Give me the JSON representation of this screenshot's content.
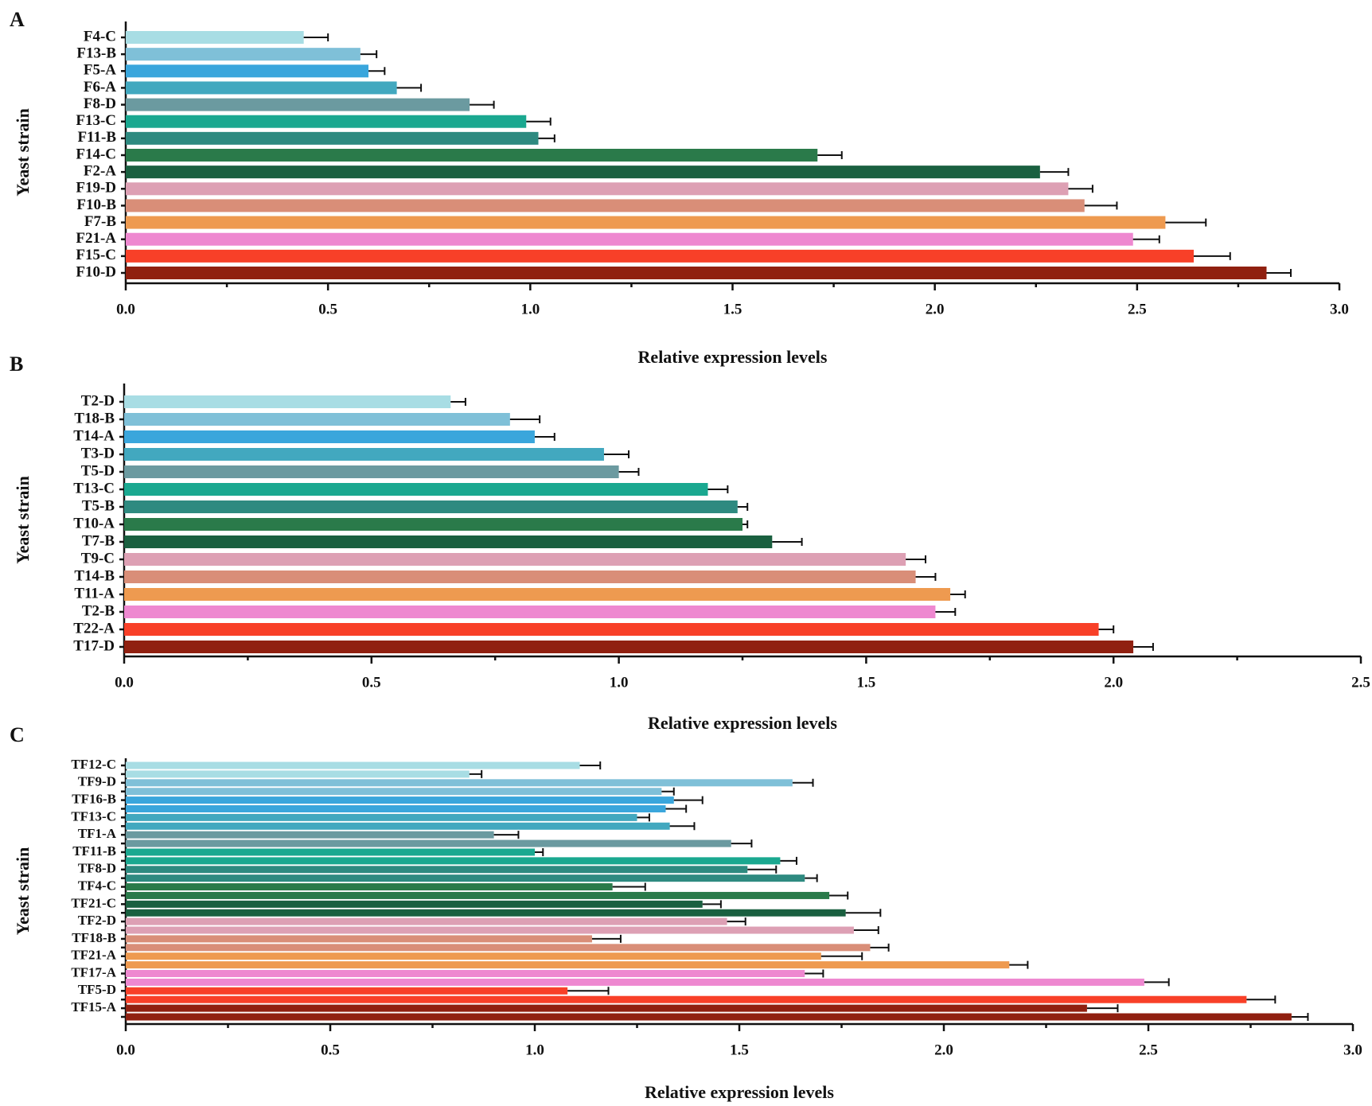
{
  "chart_data": [
    {
      "type": "hbar",
      "panel": "A",
      "ylabel": "Yeast strain",
      "xlabel": "Relative expression levels",
      "categories": [
        "F4-C",
        "F13-B",
        "F5-A",
        "F6-A",
        "F8-D",
        "F13-C",
        "F11-B",
        "F14-C",
        "F2-A",
        "F19-D",
        "F10-B",
        "F7-B",
        "F21-A",
        "F15-C",
        "F10-D"
      ],
      "values": [
        0.44,
        0.58,
        0.6,
        0.67,
        0.85,
        0.99,
        1.02,
        1.71,
        2.26,
        2.33,
        2.37,
        2.57,
        2.49,
        2.64,
        2.82
      ],
      "errors": [
        0.06,
        0.04,
        0.04,
        0.06,
        0.06,
        0.06,
        0.04,
        0.06,
        0.07,
        0.06,
        0.08,
        0.1,
        0.065,
        0.09,
        0.06
      ],
      "colors": [
        "#a8dde4",
        "#7fc0d8",
        "#3aa6dc",
        "#42a8bf",
        "#6b9aa0",
        "#1aa890",
        "#2e8a80",
        "#2a7a4a",
        "#1a6040",
        "#dda0b4",
        "#d98e78",
        "#ee9a50",
        "#ee88d0",
        "#f84028",
        "#902010"
      ],
      "xlim": [
        0,
        3
      ],
      "xticks": [
        {
          "value": 0,
          "label": "0.0"
        },
        0.5,
        {
          "value": 1,
          "label": "1.0"
        },
        1.5,
        {
          "value": 2,
          "label": "2.0"
        },
        2.5,
        {
          "value": 3,
          "label": "3.0"
        }
      ],
      "xminorticks": [
        0.25,
        0.75,
        1.25,
        1.75,
        2.25,
        2.75
      ]
    },
    {
      "type": "hbar",
      "panel": "B",
      "ylabel": "Yeast strain",
      "xlabel": "Relative expression levels",
      "categories": [
        "T2-D",
        "T18-B",
        "T14-A",
        "T3-D",
        "T5-D",
        "T13-C",
        "T5-B",
        "T10-A",
        "T7-B",
        "T9-C",
        "T14-B",
        "T11-A",
        "T2-B",
        "T22-A",
        "T17-D"
      ],
      "values": [
        0.66,
        0.78,
        0.83,
        0.97,
        1.0,
        1.18,
        1.24,
        1.25,
        1.31,
        1.58,
        1.6,
        1.67,
        1.64,
        1.97,
        2.04
      ],
      "errors": [
        0.03,
        0.06,
        0.04,
        0.05,
        0.04,
        0.04,
        0.02,
        0.01,
        0.06,
        0.04,
        0.04,
        0.03,
        0.04,
        0.03,
        0.04
      ],
      "colors": [
        "#a8dde4",
        "#7fc0d8",
        "#3aa6dc",
        "#42a8bf",
        "#6b9aa0",
        "#1aa890",
        "#2e8a80",
        "#2a7a4a",
        "#1a6040",
        "#dda0b4",
        "#d98e78",
        "#ee9a50",
        "#ee88d0",
        "#f84028",
        "#902010"
      ],
      "xlim": [
        0,
        2.5
      ],
      "xticks": [
        {
          "value": 0,
          "label": "0.0"
        },
        0.5,
        {
          "value": 1,
          "label": "1.0"
        },
        1.5,
        {
          "value": 2,
          "label": "2.0"
        },
        2.5
      ],
      "xminorticks": [
        0.25,
        0.75,
        1.25,
        1.75,
        2.25
      ]
    },
    {
      "type": "hbar",
      "panel": "C",
      "ylabel": "Yeast strain",
      "xlabel": "Relative expression levels",
      "categories": [
        "TF12-C",
        null,
        "TF9-D",
        null,
        "TF16-B",
        null,
        "TF13-C",
        null,
        "TF1-A",
        null,
        "TF11-B",
        null,
        "TF8-D",
        null,
        "TF4-C",
        null,
        "TF21-C",
        null,
        "TF2-D",
        null,
        "TF18-B",
        null,
        "TF21-A",
        null,
        "TF17-A",
        null,
        "TF5-D",
        null,
        "TF15-A",
        null
      ],
      "values": [
        1.11,
        0.84,
        1.63,
        1.31,
        1.34,
        1.32,
        1.25,
        1.33,
        0.9,
        1.48,
        1.0,
        1.6,
        1.52,
        1.66,
        1.19,
        1.72,
        1.41,
        1.76,
        1.47,
        1.78,
        1.14,
        1.82,
        1.7,
        2.16,
        1.66,
        2.49,
        1.08,
        2.74,
        2.35,
        2.85
      ],
      "errors": [
        0.05,
        0.03,
        0.05,
        0.03,
        0.07,
        0.05,
        0.03,
        0.06,
        0.06,
        0.05,
        0.02,
        0.04,
        0.07,
        0.03,
        0.08,
        0.045,
        0.045,
        0.085,
        0.045,
        0.06,
        0.07,
        0.045,
        0.1,
        0.045,
        0.045,
        0.06,
        0.1,
        0.07,
        0.075,
        0.04
      ],
      "colors": [
        "#a8dde4",
        "#a8dde4",
        "#7fc0d8",
        "#7fc0d8",
        "#3aa6dc",
        "#3aa6dc",
        "#42a8bf",
        "#42a8bf",
        "#6b9aa0",
        "#6b9aa0",
        "#1aa890",
        "#1aa890",
        "#2e8a80",
        "#2e8a80",
        "#2a7a4a",
        "#2a7a4a",
        "#1a6040",
        "#1a6040",
        "#dda0b4",
        "#dda0b4",
        "#d98e78",
        "#d98e78",
        "#ee9a50",
        "#ee9a50",
        "#ee88d0",
        "#ee88d0",
        "#f84028",
        "#f84028",
        "#902010",
        "#902010"
      ],
      "xlim": [
        0,
        3
      ],
      "xticks": [
        {
          "value": 0,
          "label": "0.0"
        },
        0.5,
        {
          "value": 1,
          "label": "1.0"
        },
        1.5,
        {
          "value": 2,
          "label": "2.0"
        },
        2.5,
        {
          "value": 3,
          "label": "3.0"
        }
      ],
      "xminorticks": [
        0.25,
        0.75,
        1.25,
        1.75,
        2.25,
        2.75
      ]
    }
  ]
}
